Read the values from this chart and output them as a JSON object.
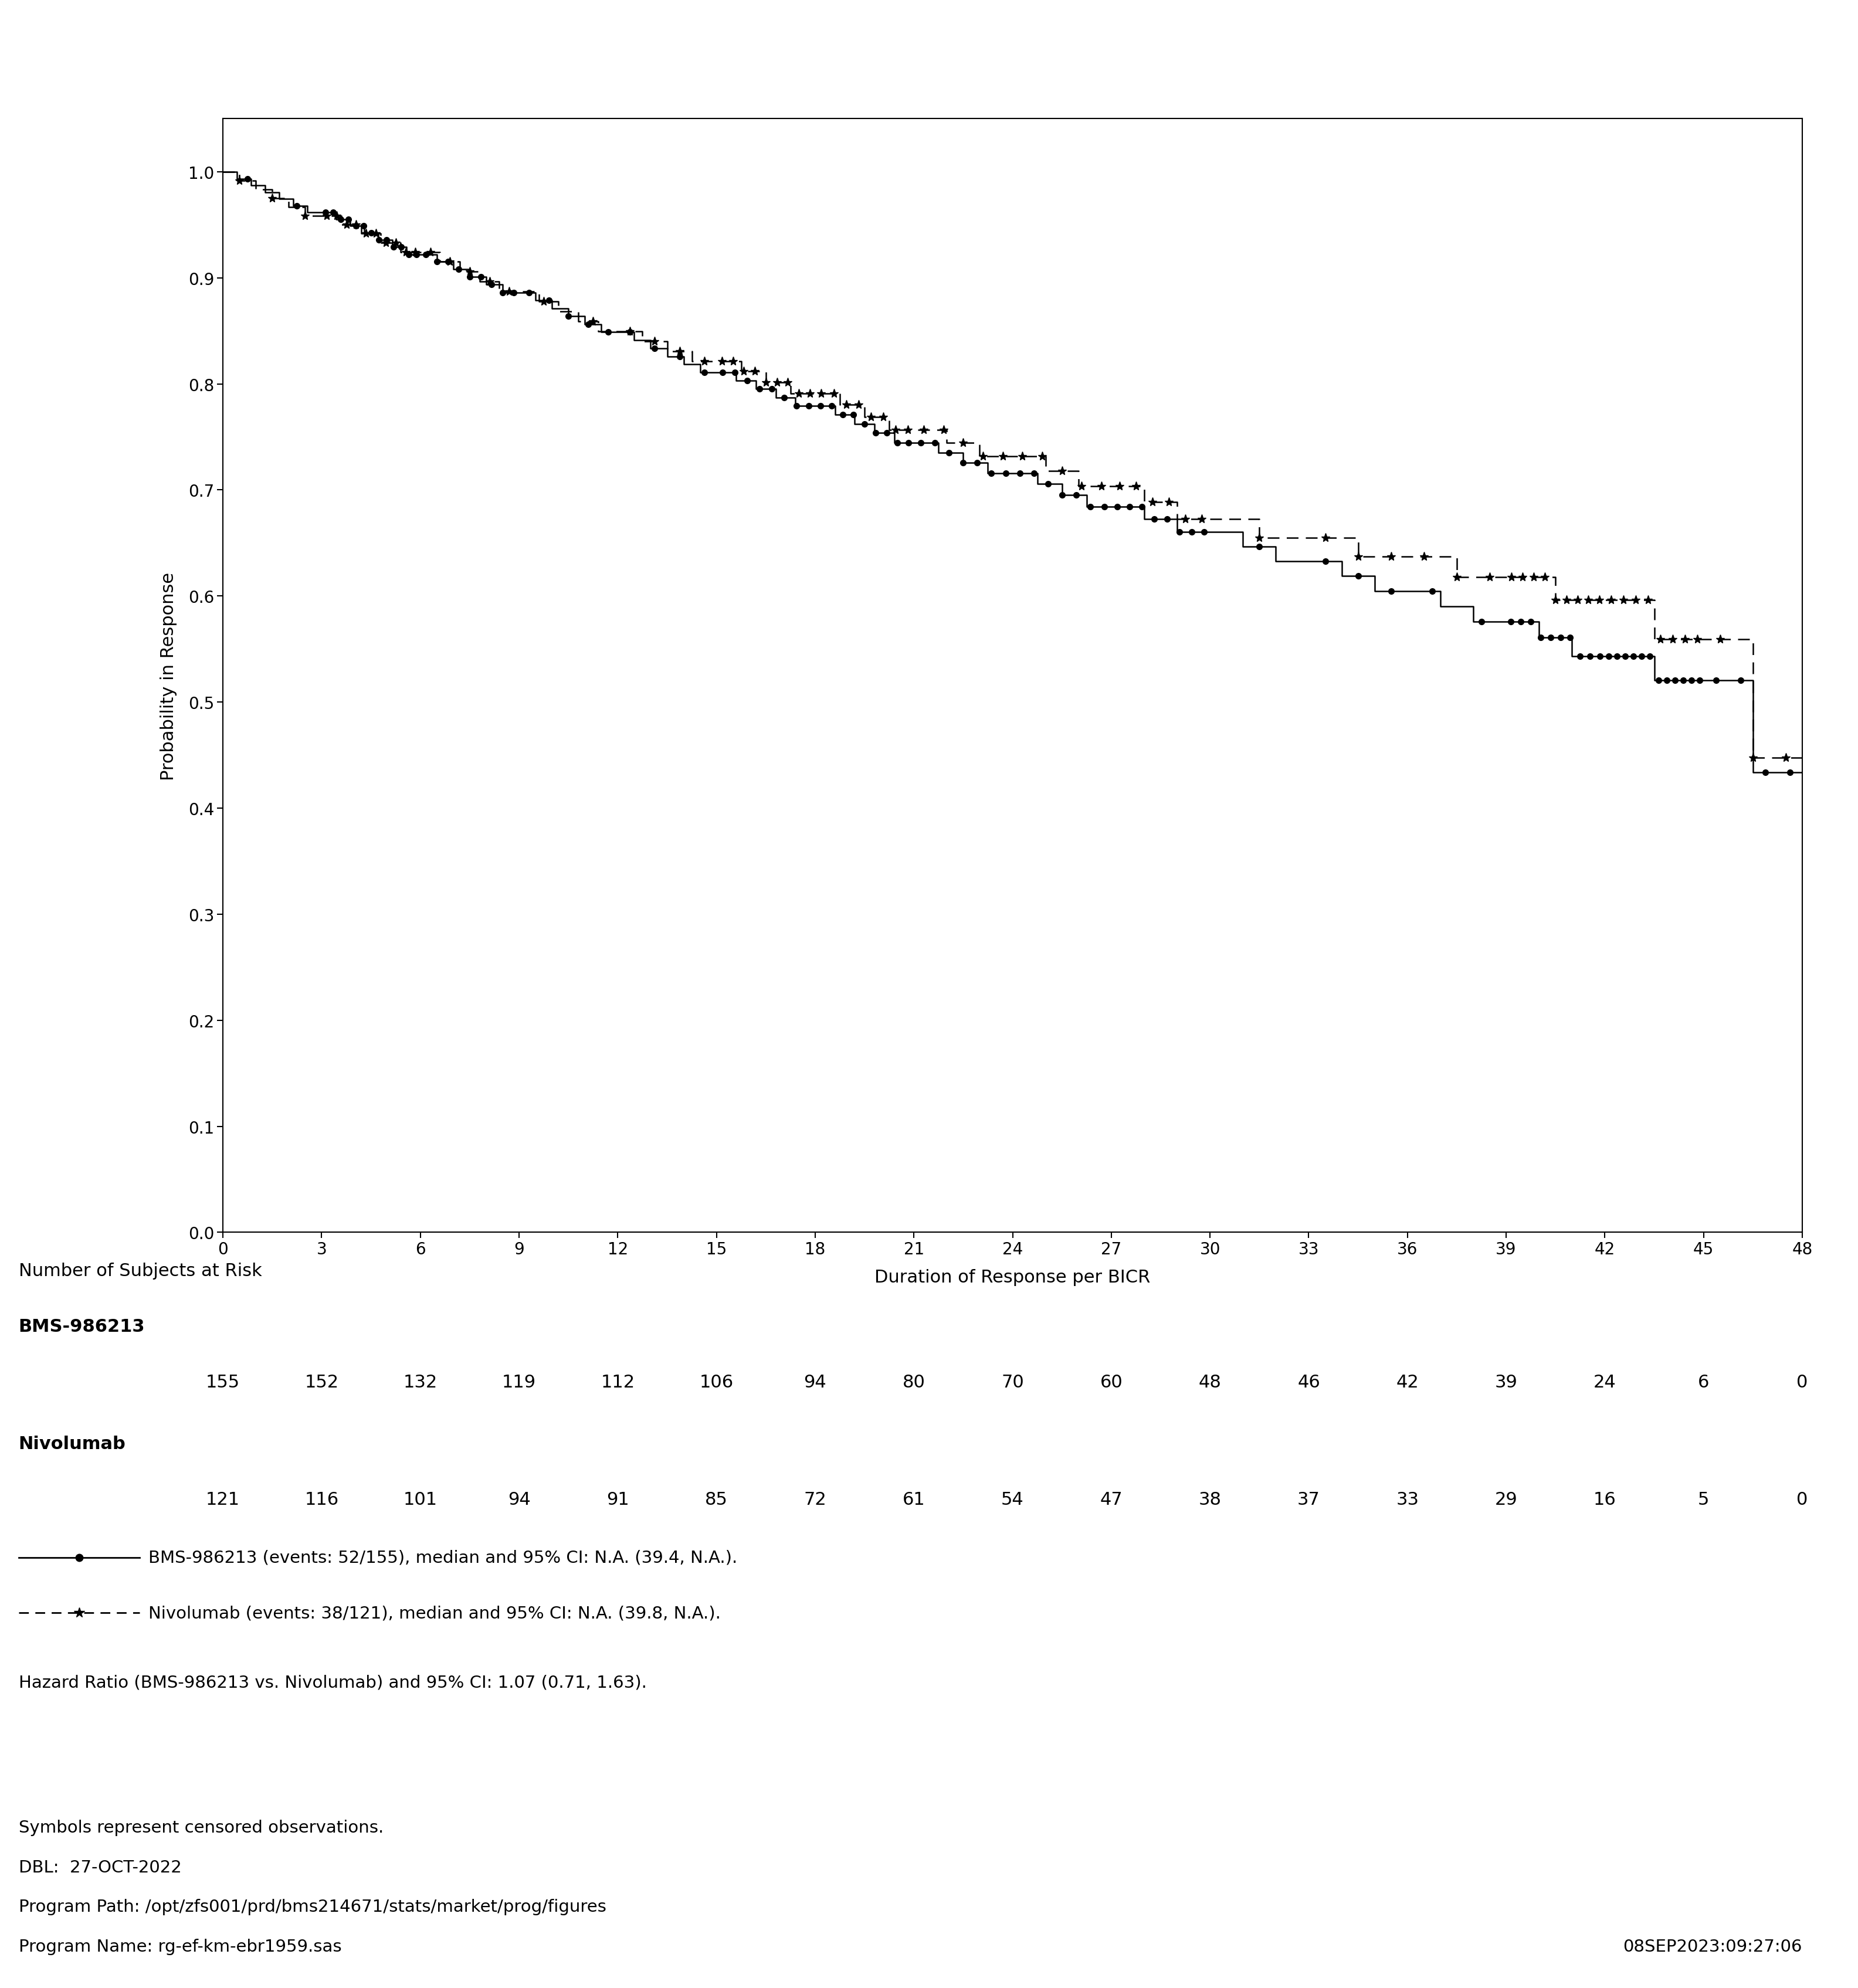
{
  "xlabel": "Duration of Response per BICR",
  "ylabel": "Probability in Response",
  "xlim": [
    0,
    48
  ],
  "ylim": [
    0.0,
    1.05
  ],
  "yticks": [
    0.0,
    0.1,
    0.2,
    0.3,
    0.4,
    0.5,
    0.6,
    0.7,
    0.8,
    0.9,
    1.0
  ],
  "xticks": [
    0,
    3,
    6,
    9,
    12,
    15,
    18,
    21,
    24,
    27,
    30,
    33,
    36,
    39,
    42,
    45,
    48
  ],
  "bms_at_risk_times": [
    0,
    3,
    6,
    9,
    12,
    15,
    18,
    21,
    24,
    27,
    30,
    33,
    36,
    39,
    42,
    45,
    48
  ],
  "bms_at_risk": [
    155,
    152,
    132,
    119,
    112,
    106,
    94,
    80,
    70,
    60,
    48,
    46,
    42,
    39,
    24,
    6,
    0
  ],
  "nivo_at_risk_times": [
    0,
    3,
    6,
    9,
    12,
    15,
    18,
    21,
    24,
    27,
    30,
    33,
    36,
    39,
    42,
    45,
    48
  ],
  "nivo_at_risk": [
    121,
    116,
    101,
    94,
    91,
    85,
    72,
    61,
    54,
    47,
    38,
    37,
    33,
    29,
    16,
    5,
    0
  ],
  "bms_events": 52,
  "bms_total": 155,
  "nivo_events": 38,
  "nivo_total": 121,
  "bms_label": "BMS-986213",
  "nivo_label": "Nivolumab",
  "bms_legend": "BMS-986213 (events: 52/155), median and 95% CI: N.A. (39.4, N.A.).",
  "nivo_legend": "Nivolumab (events: 38/121), median and 95% CI: N.A. (39.8, N.A.).",
  "hazard_ratio_text": "Hazard Ratio (BMS-986213 vs. Nivolumab) and 95% CI: 1.07 (0.71, 1.63).",
  "footer_line1": "Symbols represent censored observations.",
  "footer_line2": "DBL:  27-OCT-2022",
  "footer_line3": "Program Path: /opt/zfs001/prd/bms214671/stats/market/prog/figures",
  "footer_line4": "Program Name: rg-ef-km-ebr1959.sas",
  "footer_date": "08SEP2023:09:27:06",
  "number_of_subjects_label": "Number of Subjects at Risk",
  "bg_color": "#ffffff",
  "line_color": "#000000",
  "font_size": 22,
  "tick_font_size": 20,
  "label_font_size": 22
}
